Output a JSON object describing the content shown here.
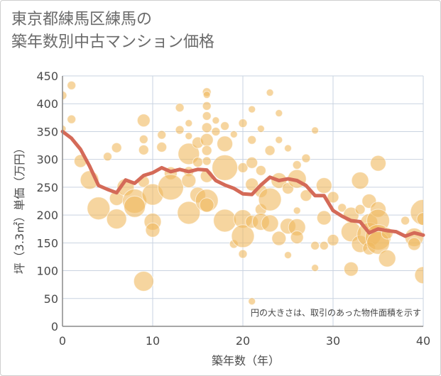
{
  "title_line1": "東京都練馬区練馬の",
  "title_line2": "築年数別中古マンション価格",
  "chart_data": {
    "type": "scatter",
    "title": "東京都練馬区練馬の築年数別中古マンション価格",
    "xlabel": "築年数（年）",
    "ylabel": "坪（3.3㎡）単価（万円）",
    "xlim": [
      0,
      40
    ],
    "ylim": [
      0,
      450
    ],
    "xticks": [
      "0",
      "10",
      "20",
      "30",
      "40"
    ],
    "yticks": [
      "0",
      "50",
      "100",
      "150",
      "200",
      "250",
      "300",
      "350",
      "400",
      "450"
    ],
    "grid": true,
    "note": "円の大きさは、取引のあった物件面積を示す",
    "colors": {
      "bubble": "#f0b95f",
      "line": "#d46a58",
      "grid": "#c9d3e0",
      "axis": "#8a8a8a"
    },
    "series": [
      {
        "kind": "bubble",
        "points": [
          [
            0,
            415,
            6
          ],
          [
            0,
            355,
            5
          ],
          [
            1,
            433,
            6
          ],
          [
            1,
            372,
            6
          ],
          [
            2,
            297,
            9
          ],
          [
            3,
            263,
            13
          ],
          [
            4,
            212,
            16
          ],
          [
            5,
            305,
            6
          ],
          [
            6,
            321,
            7
          ],
          [
            6,
            230,
            10
          ],
          [
            6,
            193,
            14
          ],
          [
            7,
            250,
            12
          ],
          [
            8,
            225,
            17
          ],
          [
            8,
            215,
            15
          ],
          [
            9,
            370,
            9
          ],
          [
            9,
            336,
            6
          ],
          [
            9,
            317,
            7
          ],
          [
            9,
            260,
            8
          ],
          [
            9,
            81,
            14
          ],
          [
            10,
            237,
            15
          ],
          [
            10,
            188,
            12
          ],
          [
            10,
            173,
            10
          ],
          [
            11,
            344,
            6
          ],
          [
            11,
            322,
            7
          ],
          [
            12,
            275,
            9
          ],
          [
            12,
            250,
            18
          ],
          [
            13,
            393,
            6
          ],
          [
            13,
            353,
            6
          ],
          [
            14,
            365,
            5
          ],
          [
            14,
            342,
            5
          ],
          [
            14,
            310,
            15
          ],
          [
            14,
            278,
            7
          ],
          [
            14,
            262,
            10
          ],
          [
            14,
            204,
            16
          ],
          [
            15,
            330,
            8
          ],
          [
            15,
            295,
            7
          ],
          [
            15,
            236,
            11
          ],
          [
            16,
            421,
            6
          ],
          [
            16,
            416,
            5
          ],
          [
            16,
            396,
            6
          ],
          [
            16,
            378,
            6
          ],
          [
            16,
            357,
            7
          ],
          [
            16,
            335,
            9
          ],
          [
            16,
            316,
            7
          ],
          [
            16,
            297,
            6
          ],
          [
            16,
            270,
            9
          ],
          [
            16,
            226,
            16
          ],
          [
            16,
            218,
            10
          ],
          [
            17,
            370,
            5
          ],
          [
            17,
            350,
            6
          ],
          [
            18,
            285,
            18
          ],
          [
            18,
            328,
            11
          ],
          [
            18,
            360,
            6
          ],
          [
            18,
            190,
            16
          ],
          [
            19,
            345,
            5
          ],
          [
            19,
            148,
            6
          ],
          [
            20,
            365,
            6
          ],
          [
            20,
            285,
            7
          ],
          [
            20,
            193,
            13
          ],
          [
            20,
            162,
            16
          ],
          [
            20,
            130,
            6
          ],
          [
            21,
            390,
            5
          ],
          [
            21,
            335,
            6
          ],
          [
            21,
            294,
            8
          ],
          [
            21,
            255,
            9
          ],
          [
            21,
            188,
            9
          ],
          [
            21,
            45,
            5
          ],
          [
            22,
            355,
            5
          ],
          [
            22,
            280,
            7
          ],
          [
            22,
            243,
            9
          ],
          [
            22,
            210,
            8
          ],
          [
            22,
            188,
            12
          ],
          [
            23,
            420,
            5
          ],
          [
            23,
            316,
            7
          ],
          [
            23,
            228,
            16
          ],
          [
            23,
            185,
            12
          ],
          [
            24,
            383,
            5
          ],
          [
            24,
            335,
            5
          ],
          [
            24,
            262,
            11
          ],
          [
            24,
            158,
            10
          ],
          [
            25,
            320,
            5
          ],
          [
            25,
            248,
            8
          ],
          [
            25,
            180,
            11
          ],
          [
            25,
            128,
            5
          ],
          [
            26,
            290,
            6
          ],
          [
            26,
            265,
            13
          ],
          [
            26,
            208,
            5
          ],
          [
            26,
            178,
            12
          ],
          [
            26,
            160,
            9
          ],
          [
            27,
            302,
            6
          ],
          [
            27,
            235,
            8
          ],
          [
            28,
            352,
            5
          ],
          [
            28,
            145,
            6
          ],
          [
            28,
            105,
            5
          ],
          [
            29,
            253,
            11
          ],
          [
            29,
            195,
            10
          ],
          [
            29,
            145,
            6
          ],
          [
            30,
            232,
            8
          ],
          [
            30,
            155,
            8
          ],
          [
            31,
            213,
            6
          ],
          [
            32,
            200,
            11
          ],
          [
            32,
            170,
            14
          ],
          [
            32,
            103,
            10
          ],
          [
            33,
            262,
            12
          ],
          [
            33,
            210,
            7
          ],
          [
            33,
            148,
            12
          ],
          [
            34,
            225,
            10
          ],
          [
            34,
            187,
            12
          ],
          [
            34,
            165,
            17
          ],
          [
            34,
            140,
            9
          ],
          [
            35,
            293,
            11
          ],
          [
            35,
            210,
            11
          ],
          [
            35,
            190,
            16
          ],
          [
            35,
            160,
            18
          ],
          [
            35,
            150,
            16
          ],
          [
            36,
            122,
            12
          ],
          [
            36,
            167,
            8
          ],
          [
            38,
            190,
            6
          ],
          [
            39,
            160,
            13
          ],
          [
            39,
            148,
            9
          ],
          [
            40,
            205,
            18
          ],
          [
            40,
            193,
            9
          ],
          [
            40,
            92,
            12
          ]
        ]
      },
      {
        "kind": "line",
        "points": [
          [
            0,
            350
          ],
          [
            1,
            338
          ],
          [
            2,
            318
          ],
          [
            3,
            288
          ],
          [
            4,
            253
          ],
          [
            5,
            246
          ],
          [
            6,
            240
          ],
          [
            7,
            263
          ],
          [
            8,
            257
          ],
          [
            9,
            271
          ],
          [
            10,
            276
          ],
          [
            11,
            285
          ],
          [
            12,
            278
          ],
          [
            13,
            282
          ],
          [
            14,
            278
          ],
          [
            15,
            282
          ],
          [
            16,
            281
          ],
          [
            17,
            262
          ],
          [
            18,
            254
          ],
          [
            19,
            248
          ],
          [
            20,
            238
          ],
          [
            21,
            237
          ],
          [
            22,
            254
          ],
          [
            23,
            268
          ],
          [
            24,
            262
          ],
          [
            25,
            265
          ],
          [
            26,
            262
          ],
          [
            27,
            253
          ],
          [
            28,
            235
          ],
          [
            29,
            235
          ],
          [
            30,
            208
          ],
          [
            31,
            198
          ],
          [
            32,
            190
          ],
          [
            33,
            188
          ],
          [
            34,
            168
          ],
          [
            35,
            175
          ],
          [
            36,
            172
          ],
          [
            37,
            170
          ],
          [
            38,
            162
          ],
          [
            39,
            168
          ],
          [
            40,
            164
          ]
        ]
      }
    ]
  }
}
